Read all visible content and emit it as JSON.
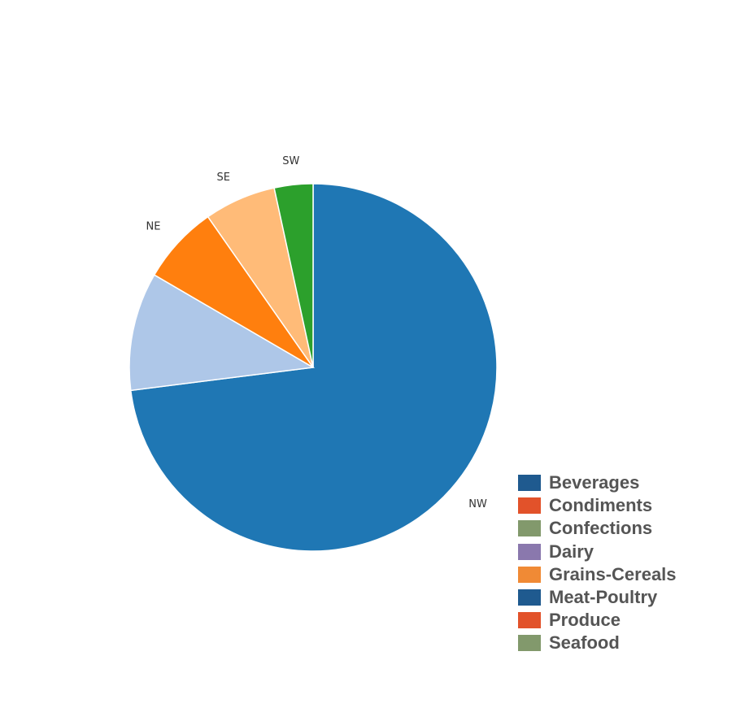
{
  "chart_data": {
    "type": "pie",
    "title": "",
    "slices": [
      {
        "label": "NW",
        "value": 73,
        "color": "#1f77b4"
      },
      {
        "label": "",
        "value": 10.4,
        "color": "#aec7e8"
      },
      {
        "label": "NE",
        "value": 6.9,
        "color": "#ff7f0e"
      },
      {
        "label": "SE",
        "value": 6.3,
        "color": "#ffbb78"
      },
      {
        "label": "SW",
        "value": 3.4,
        "color": "#2ca02c"
      }
    ],
    "start": "12 o'clock",
    "direction": "clockwise",
    "legend_placement": "bottom-right",
    "legend": [
      {
        "label": "Beverages",
        "color": "#1f5a8f"
      },
      {
        "label": "Condiments",
        "color": "#e2522a"
      },
      {
        "label": "Confections",
        "color": "#82996c"
      },
      {
        "label": "Dairy",
        "color": "#8a78ad"
      },
      {
        "label": "Grains-Cereals",
        "color": "#f08a35"
      },
      {
        "label": "Meat-Poultry",
        "color": "#1f5a8f"
      },
      {
        "label": "Produce",
        "color": "#e2522a"
      },
      {
        "label": "Seafood",
        "color": "#82996c"
      }
    ]
  }
}
